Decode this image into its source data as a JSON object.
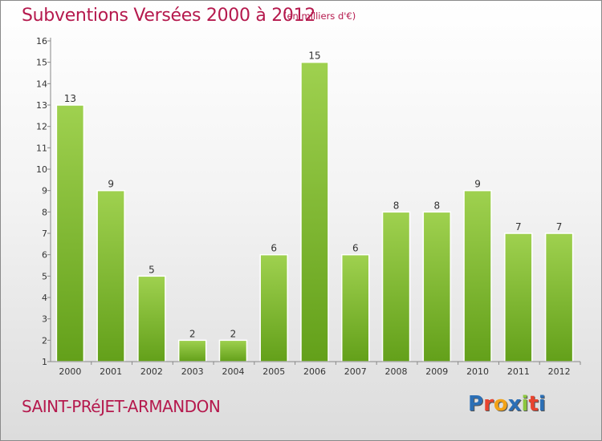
{
  "header": {
    "title": "Subventions Versées 2000 à 2012",
    "subtitle": "(en milliers d'€)"
  },
  "footer": {
    "commune": "SAINT-PRéJET-ARMANDON",
    "logo_letters": [
      "P",
      "r",
      "o",
      "x",
      "i",
      "t",
      "i"
    ],
    "logo_colors": [
      "#2b6fb6",
      "#e8442e",
      "#f2a216",
      "#2b6fb6",
      "#8cc63f",
      "#e8442e",
      "#2b6fb6"
    ]
  },
  "colors": {
    "title": "#b5194d",
    "bar_light": "#9fd14f",
    "bar_dark": "#63a01a"
  },
  "chart_data": {
    "type": "bar",
    "title": "Subventions Versées 2000 à 2012",
    "subtitle": "(en milliers d'€)",
    "categories": [
      "2000",
      "2001",
      "2002",
      "2003",
      "2004",
      "2005",
      "2006",
      "2007",
      "2008",
      "2009",
      "2010",
      "2011",
      "2012"
    ],
    "values": [
      13,
      9,
      5,
      2,
      2,
      6,
      15,
      6,
      8,
      8,
      9,
      7,
      7
    ],
    "y_ticks": [
      "1",
      "2",
      "3",
      "4",
      "5",
      "6",
      "7",
      "8",
      "9",
      "10",
      "11",
      "12",
      "13",
      "14",
      "15",
      "16"
    ],
    "ylim": [
      1,
      16
    ],
    "grid": false,
    "legend": "none"
  }
}
